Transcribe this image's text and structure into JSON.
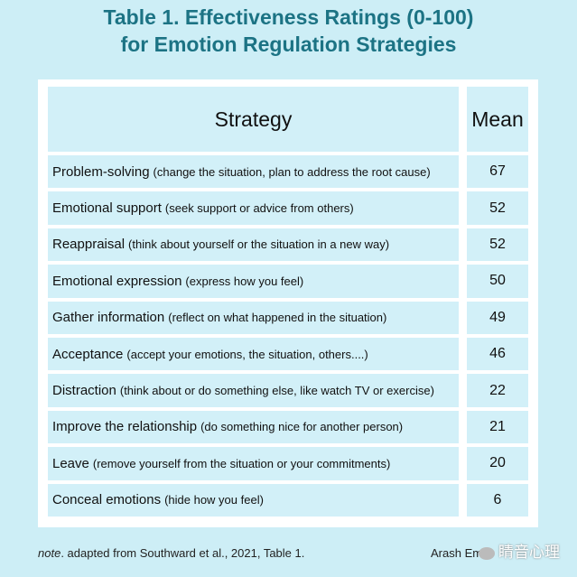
{
  "title": [
    "Table 1. Effectiveness Ratings (0-100)",
    "for Emotion Regulation Strategies"
  ],
  "table": {
    "header": [
      "Strategy",
      "Mean"
    ],
    "rows": [
      {
        "name": "Problem-solving",
        "description": "(change the situation, plan to address the root cause)",
        "mean": 67
      },
      {
        "name": "Emotional support",
        "description": "(seek support or advice from others)",
        "mean": 52
      },
      {
        "name": "Reappraisal",
        "description": "(think about yourself or the situation in a new way)",
        "mean": 52
      },
      {
        "name": "Emotional expression",
        "description": "(express how you feel)",
        "mean": 50
      },
      {
        "name": "Gather information",
        "description": "(reflect on what happened in the situation)",
        "mean": 49
      },
      {
        "name": "Acceptance",
        "description": "(accept your emotions, the situation, others....)",
        "mean": 46
      },
      {
        "name": "Distraction",
        "description": "(think about or do something else, like watch TV or exercise)",
        "mean": 22
      },
      {
        "name": "Improve the relationship",
        "description": "(do something nice for another person)",
        "mean": 21
      },
      {
        "name": "Leave",
        "description": "(remove yourself from the situation or your commitments)",
        "mean": 20
      },
      {
        "name": "Conceal emotions",
        "description": "(hide how you feel)",
        "mean": 6
      }
    ]
  },
  "footer": {
    "note_label": "note",
    "note_text": ". adapted from Southward et al., 2021, Table 1.",
    "author": "Arash Em",
    "watermark": "睛音心理"
  }
}
